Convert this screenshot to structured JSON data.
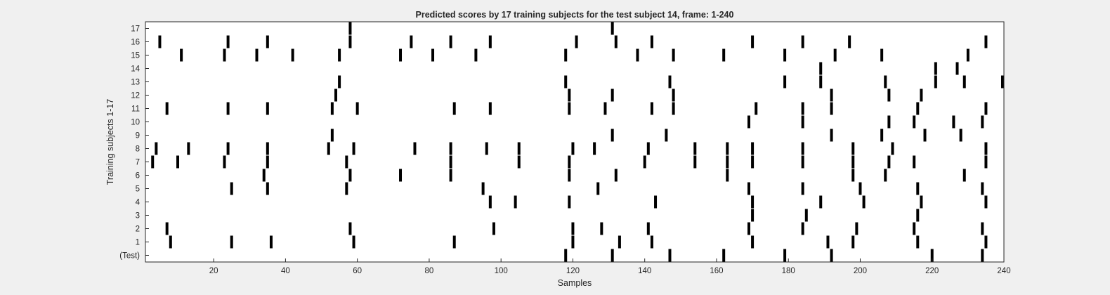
{
  "chart_data": {
    "type": "raster",
    "title": "Predicted scores by 17 training subjects for the test subject 14, frame: 1-240",
    "xlabel": "Samples",
    "ylabel": "Training subjects 1-17",
    "xlim": [
      1,
      240
    ],
    "xticks": [
      20,
      40,
      60,
      80,
      100,
      120,
      140,
      160,
      180,
      200,
      220,
      240
    ],
    "yticks": [
      "(Test)",
      "1",
      "2",
      "3",
      "4",
      "5",
      "6",
      "7",
      "8",
      "9",
      "10",
      "11",
      "12",
      "13",
      "14",
      "15",
      "16",
      "17"
    ],
    "grid": false,
    "rows": [
      {
        "label": "(Test)",
        "x": [
          118,
          131,
          147,
          162,
          179,
          192,
          220,
          234
        ]
      },
      {
        "label": "1",
        "x": [
          8,
          25,
          36,
          59,
          87,
          120,
          133,
          142,
          170,
          191,
          198,
          216,
          235
        ]
      },
      {
        "label": "2",
        "x": [
          7,
          58,
          98,
          120,
          128,
          141,
          169,
          184,
          199,
          215,
          234
        ]
      },
      {
        "label": "3",
        "x": [
          170,
          185,
          216
        ]
      },
      {
        "label": "4",
        "x": [
          97,
          104,
          119,
          143,
          170,
          189,
          201,
          217,
          235
        ]
      },
      {
        "label": "5",
        "x": [
          25,
          35,
          57,
          95,
          127,
          169,
          184,
          200,
          216,
          234
        ]
      },
      {
        "label": "6",
        "x": [
          34,
          58,
          72,
          86,
          119,
          132,
          163,
          198,
          207,
          229
        ]
      },
      {
        "label": "7",
        "x": [
          3,
          10,
          23,
          35,
          57,
          86,
          105,
          119,
          140,
          154,
          163,
          170,
          184,
          198,
          208,
          215,
          235
        ]
      },
      {
        "label": "8",
        "x": [
          4,
          13,
          24,
          35,
          52,
          59,
          76,
          86,
          96,
          105,
          120,
          126,
          141,
          154,
          163,
          170,
          184,
          198,
          209,
          235
        ]
      },
      {
        "label": "9",
        "x": [
          53,
          131,
          146,
          192,
          206,
          218,
          228
        ]
      },
      {
        "label": "10",
        "x": [
          169,
          184,
          208,
          215,
          226,
          234
        ]
      },
      {
        "label": "11",
        "x": [
          7,
          24,
          35,
          53,
          60,
          87,
          97,
          119,
          129,
          142,
          148,
          171,
          184,
          192,
          216,
          235
        ]
      },
      {
        "label": "12",
        "x": [
          54,
          119,
          131,
          148,
          192,
          208,
          217
        ]
      },
      {
        "label": "13",
        "x": [
          55,
          118,
          147,
          179,
          189,
          207,
          221,
          229,
          240
        ]
      },
      {
        "label": "14",
        "x": [
          189,
          221,
          227
        ]
      },
      {
        "label": "15",
        "x": [
          11,
          23,
          32,
          42,
          55,
          72,
          81,
          93,
          118,
          138,
          148,
          162,
          179,
          193,
          206,
          230
        ]
      },
      {
        "label": "16",
        "x": [
          5,
          24,
          35,
          58,
          75,
          86,
          97,
          121,
          132,
          142,
          170,
          184,
          197,
          235
        ]
      },
      {
        "label": "17",
        "x": [
          58,
          131
        ]
      }
    ]
  }
}
